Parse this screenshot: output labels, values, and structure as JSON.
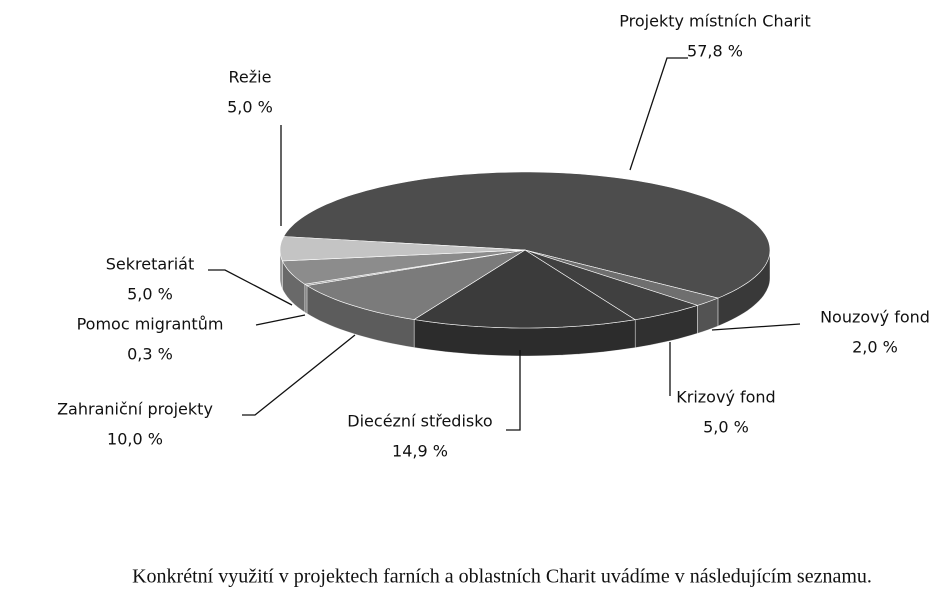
{
  "chart_data": {
    "type": "pie3d",
    "categories": [
      "Projekty místních Charit",
      "Nouzový fond",
      "Krizový fond",
      "Diecézní středisko",
      "Zahraniční projekty",
      "Pomoc migrantům",
      "Sekretariát",
      "Režie"
    ],
    "values": [
      57.8,
      2.0,
      5.0,
      14.9,
      10.0,
      0.3,
      5.0,
      5.0
    ],
    "value_labels": [
      "57,8 %",
      "2,0 %",
      "5,0 %",
      "14,9 %",
      "10,0 %",
      "0,3 %",
      "5,0 %",
      "5,0 %"
    ],
    "colors": [
      "#4d4d4d",
      "#6f6f6f",
      "#404040",
      "#3b3b3b",
      "#7b7b7b",
      "#a0a0a0",
      "#8c8c8c",
      "#c4c4c4"
    ]
  },
  "caption": "Konkrétní využití v projektech farních a oblastních Charit uvádíme v následujícím seznamu."
}
